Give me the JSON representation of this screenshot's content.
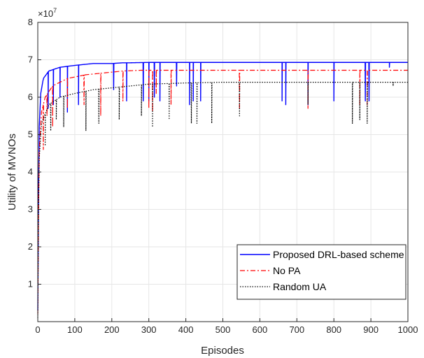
{
  "chart_data": {
    "type": "line",
    "xlabel": "Episodes",
    "ylabel": "Utility of MVNOs",
    "y_multiplier_label": "×10",
    "y_multiplier_exp": "7",
    "xlim": [
      0,
      1000
    ],
    "ylim": [
      0,
      8
    ],
    "x_ticks": [
      "0",
      "100",
      "200",
      "300",
      "400",
      "500",
      "600",
      "700",
      "800",
      "900",
      "1000"
    ],
    "y_ticks": [
      "1",
      "2",
      "3",
      "4",
      "5",
      "6",
      "7",
      "8"
    ],
    "grid": true,
    "legend_position": "bottom-right",
    "series": [
      {
        "name": "Proposed DRL-based scheme",
        "color": "#0000ff",
        "style": "solid",
        "values_x": [
          0,
          3,
          8,
          15,
          30,
          60,
          100,
          150,
          200,
          230,
          250,
          300,
          1000
        ],
        "values_y": [
          0.3,
          5.0,
          6.1,
          6.5,
          6.7,
          6.8,
          6.85,
          6.9,
          6.9,
          6.92,
          6.92,
          6.93,
          6.93
        ],
        "dips": [
          [
            28,
            5.7
          ],
          [
            42,
            5.8
          ],
          [
            60,
            6.0
          ],
          [
            80,
            5.6
          ],
          [
            110,
            5.8
          ],
          [
            205,
            6.2
          ],
          [
            240,
            5.9
          ],
          [
            285,
            5.9
          ],
          [
            300,
            5.9
          ],
          [
            315,
            6.0
          ],
          [
            330,
            5.9
          ],
          [
            375,
            6.3
          ],
          [
            410,
            5.8
          ],
          [
            420,
            5.9
          ],
          [
            440,
            5.9
          ],
          [
            660,
            5.9
          ],
          [
            670,
            5.8
          ],
          [
            730,
            5.8
          ],
          [
            800,
            5.9
          ],
          [
            885,
            5.9
          ],
          [
            895,
            5.9
          ],
          [
            950,
            6.8
          ]
        ]
      },
      {
        "name": "No PA",
        "color": "#ff0000",
        "style": "dashdot",
        "values_x": [
          0,
          3,
          10,
          20,
          40,
          80,
          130,
          180,
          230,
          280,
          330,
          1000
        ],
        "values_y": [
          0.2,
          4.4,
          5.6,
          6.0,
          6.3,
          6.5,
          6.6,
          6.65,
          6.7,
          6.72,
          6.72,
          6.72
        ],
        "dips": [
          [
            15,
            4.6
          ],
          [
            25,
            5.5
          ],
          [
            40,
            5.2
          ],
          [
            80,
            5.7
          ],
          [
            125,
            5.8
          ],
          [
            170,
            5.5
          ],
          [
            230,
            5.9
          ],
          [
            300,
            5.7
          ],
          [
            310,
            5.6
          ],
          [
            320,
            6.1
          ],
          [
            360,
            5.8
          ],
          [
            545,
            5.7
          ],
          [
            730,
            5.7
          ],
          [
            870,
            5.8
          ],
          [
            890,
            5.8
          ]
        ]
      },
      {
        "name": "Random UA",
        "color": "#000000",
        "style": "dotted",
        "values_x": [
          0,
          3,
          10,
          30,
          60,
          100,
          150,
          200,
          250,
          300,
          400,
          500,
          1000
        ],
        "values_y": [
          0.1,
          4.2,
          5.3,
          5.8,
          6.0,
          6.1,
          6.2,
          6.25,
          6.3,
          6.35,
          6.38,
          6.4,
          6.4
        ],
        "dips": [
          [
            20,
            4.7
          ],
          [
            35,
            5.1
          ],
          [
            50,
            5.4
          ],
          [
            70,
            5.2
          ],
          [
            130,
            5.1
          ],
          [
            165,
            5.3
          ],
          [
            220,
            5.4
          ],
          [
            280,
            5.5
          ],
          [
            310,
            5.2
          ],
          [
            355,
            5.4
          ],
          [
            415,
            5.3
          ],
          [
            430,
            5.3
          ],
          [
            470,
            5.3
          ],
          [
            545,
            5.5
          ],
          [
            730,
            5.8
          ],
          [
            850,
            5.3
          ],
          [
            870,
            5.4
          ],
          [
            890,
            5.3
          ],
          [
            960,
            6.3
          ]
        ]
      }
    ]
  }
}
